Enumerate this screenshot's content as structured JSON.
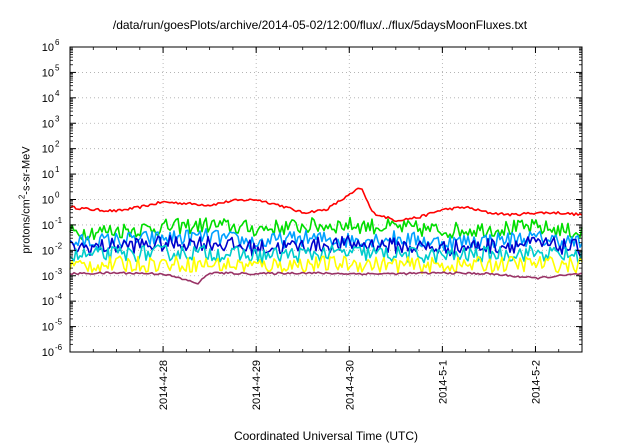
{
  "chart_data": {
    "type": "line",
    "title": "/data/run/goesPlots/archive/2014-05-02/12:00/flux/../flux/5daysMoonFluxes.txt",
    "xlabel": "Coordinated Universal Time (UTC)",
    "ylabel_prefix": "protons/cm",
    "ylabel_sup": "2",
    "ylabel_suffix": "-s-sr-MeV",
    "yscale": "log",
    "ylim": [
      1e-06,
      1000000.0
    ],
    "ytick_base": "10",
    "yticks": [
      -6,
      -5,
      -4,
      -3,
      -2,
      -1,
      0,
      1,
      2,
      3,
      4,
      5,
      6
    ],
    "xlim": [
      "2014-04-27 00:00",
      "2014-05-02 12:00"
    ],
    "xticks": [
      "2014-4-28",
      "2014-4-29",
      "2014-4-30",
      "2014-5-1",
      "2014-5-2"
    ],
    "grid": true,
    "series": [
      {
        "color": "#ff0000",
        "x": [
          "2014-04-27 00:00",
          "2014-04-27 06:00",
          "2014-04-27 12:00",
          "2014-04-27 18:00",
          "2014-04-28 00:00",
          "2014-04-28 06:00",
          "2014-04-28 12:00",
          "2014-04-28 18:00",
          "2014-04-29 00:00",
          "2014-04-29 06:00",
          "2014-04-29 12:00",
          "2014-04-29 18:00",
          "2014-04-30 00:00",
          "2014-04-30 03:00",
          "2014-04-30 06:00",
          "2014-04-30 12:00",
          "2014-04-30 18:00",
          "2014-05-01 00:00",
          "2014-05-01 06:00",
          "2014-05-01 12:00",
          "2014-05-01 18:00",
          "2014-05-02 00:00",
          "2014-05-02 06:00",
          "2014-05-02 12:00"
        ],
        "y": [
          0.5,
          0.4,
          0.35,
          0.5,
          0.8,
          0.7,
          0.6,
          0.9,
          1.0,
          0.6,
          0.3,
          0.4,
          1.5,
          3.0,
          0.3,
          0.15,
          0.2,
          0.4,
          0.5,
          0.3,
          0.25,
          0.3,
          0.3,
          0.25
        ]
      },
      {
        "color": "#00dd00",
        "x": [
          "2014-04-27 00:00",
          "2014-04-27 12:00",
          "2014-04-28 00:00",
          "2014-04-28 12:00",
          "2014-04-29 00:00",
          "2014-04-29 12:00",
          "2014-04-30 00:00",
          "2014-04-30 12:00",
          "2014-05-01 00:00",
          "2014-05-01 12:00",
          "2014-05-02 00:00",
          "2014-05-02 12:00"
        ],
        "y": [
          0.05,
          0.06,
          0.08,
          0.1,
          0.07,
          0.09,
          0.1,
          0.08,
          0.06,
          0.07,
          0.08,
          0.05
        ]
      },
      {
        "color": "#00a0ff",
        "x": [
          "2014-04-27 00:00",
          "2014-04-27 12:00",
          "2014-04-28 00:00",
          "2014-04-28 12:00",
          "2014-04-29 00:00",
          "2014-04-29 12:00",
          "2014-04-30 00:00",
          "2014-04-30 12:00",
          "2014-05-01 00:00",
          "2014-05-01 12:00",
          "2014-05-02 00:00",
          "2014-05-02 12:00"
        ],
        "y": [
          0.02,
          0.025,
          0.03,
          0.035,
          0.02,
          0.03,
          0.025,
          0.03,
          0.02,
          0.025,
          0.03,
          0.02
        ]
      },
      {
        "color": "#0000cc",
        "x": [
          "2014-04-27 00:00",
          "2014-04-27 12:00",
          "2014-04-28 00:00",
          "2014-04-28 12:00",
          "2014-04-29 00:00",
          "2014-04-29 12:00",
          "2014-04-30 00:00",
          "2014-04-30 12:00",
          "2014-05-01 00:00",
          "2014-05-01 12:00",
          "2014-05-02 00:00",
          "2014-05-02 12:00"
        ],
        "y": [
          0.012,
          0.015,
          0.018,
          0.02,
          0.012,
          0.015,
          0.018,
          0.015,
          0.012,
          0.015,
          0.018,
          0.012
        ]
      },
      {
        "color": "#00cccc",
        "x": [
          "2014-04-27 00:00",
          "2014-04-27 12:00",
          "2014-04-28 00:00",
          "2014-04-28 12:00",
          "2014-04-29 00:00",
          "2014-04-29 12:00",
          "2014-04-30 00:00",
          "2014-04-30 12:00",
          "2014-05-01 00:00",
          "2014-05-01 12:00",
          "2014-05-02 00:00",
          "2014-05-02 12:00"
        ],
        "y": [
          0.006,
          0.007,
          0.008,
          0.008,
          0.006,
          0.007,
          0.008,
          0.007,
          0.006,
          0.007,
          0.008,
          0.006
        ]
      },
      {
        "color": "#ffff00",
        "x": [
          "2014-04-27 00:00",
          "2014-04-27 12:00",
          "2014-04-28 00:00",
          "2014-04-28 12:00",
          "2014-04-29 00:00",
          "2014-04-29 12:00",
          "2014-04-30 00:00",
          "2014-04-30 12:00",
          "2014-05-01 00:00",
          "2014-05-01 12:00",
          "2014-05-02 00:00",
          "2014-05-02 12:00"
        ],
        "y": [
          0.0025,
          0.0028,
          0.003,
          0.0028,
          0.0025,
          0.0028,
          0.003,
          0.0027,
          0.0025,
          0.0028,
          0.003,
          0.0026
        ]
      },
      {
        "color": "#993366",
        "x": [
          "2014-04-27 00:00",
          "2014-04-27 12:00",
          "2014-04-28 00:00",
          "2014-04-28 09:00",
          "2014-04-28 12:00",
          "2014-04-29 00:00",
          "2014-04-29 12:00",
          "2014-04-30 00:00",
          "2014-04-30 12:00",
          "2014-05-01 00:00",
          "2014-05-01 12:00",
          "2014-05-02 00:00",
          "2014-05-02 12:00"
        ],
        "y": [
          0.0012,
          0.0013,
          0.0012,
          0.0005,
          0.0013,
          0.0012,
          0.0013,
          0.0012,
          0.0012,
          0.0013,
          0.0012,
          0.0008,
          0.0012
        ]
      }
    ]
  }
}
